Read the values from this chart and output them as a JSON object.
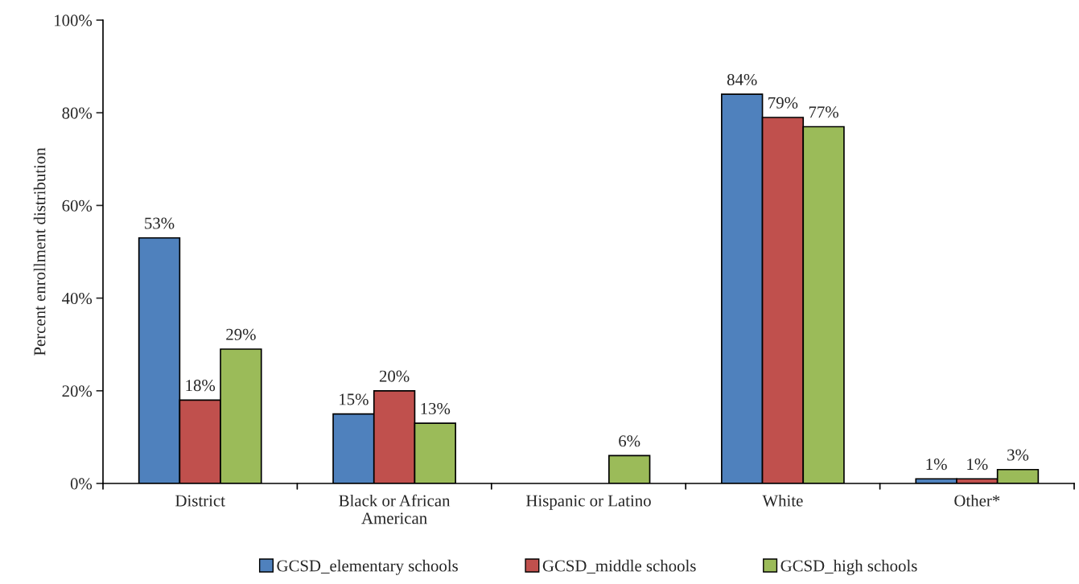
{
  "chart_data": {
    "type": "bar",
    "ylabel": "Percent enrollment distribution",
    "categories": [
      "District",
      "Black or African\nAmerican",
      "Hispanic or Latino",
      "White",
      "Other*"
    ],
    "series": [
      {
        "name": "GCSD_elementary schools",
        "color": "#4f81bd",
        "values": [
          53,
          15,
          null,
          84,
          1
        ],
        "value_labels": [
          "53%",
          "15%",
          null,
          "84%",
          "1%"
        ]
      },
      {
        "name": "GCSD_middle schools",
        "color": "#c0504d",
        "values": [
          18,
          20,
          null,
          79,
          1
        ],
        "value_labels": [
          "18%",
          "20%",
          null,
          "79%",
          "1%"
        ]
      },
      {
        "name": "GCSD_high schools",
        "color": "#9bbb59",
        "values": [
          29,
          13,
          6,
          77,
          3
        ],
        "value_labels": [
          "29%",
          "13%",
          "6%",
          "77%",
          "3%"
        ]
      }
    ],
    "ylim": [
      0,
      100
    ],
    "yticks": [
      {
        "value": 0,
        "label": "0%"
      },
      {
        "value": 20,
        "label": "20%"
      },
      {
        "value": 40,
        "label": "40%"
      },
      {
        "value": 60,
        "label": "60%"
      },
      {
        "value": 80,
        "label": "80%"
      },
      {
        "value": 100,
        "label": "100%"
      }
    ],
    "grid": false,
    "legend": "bottom"
  }
}
